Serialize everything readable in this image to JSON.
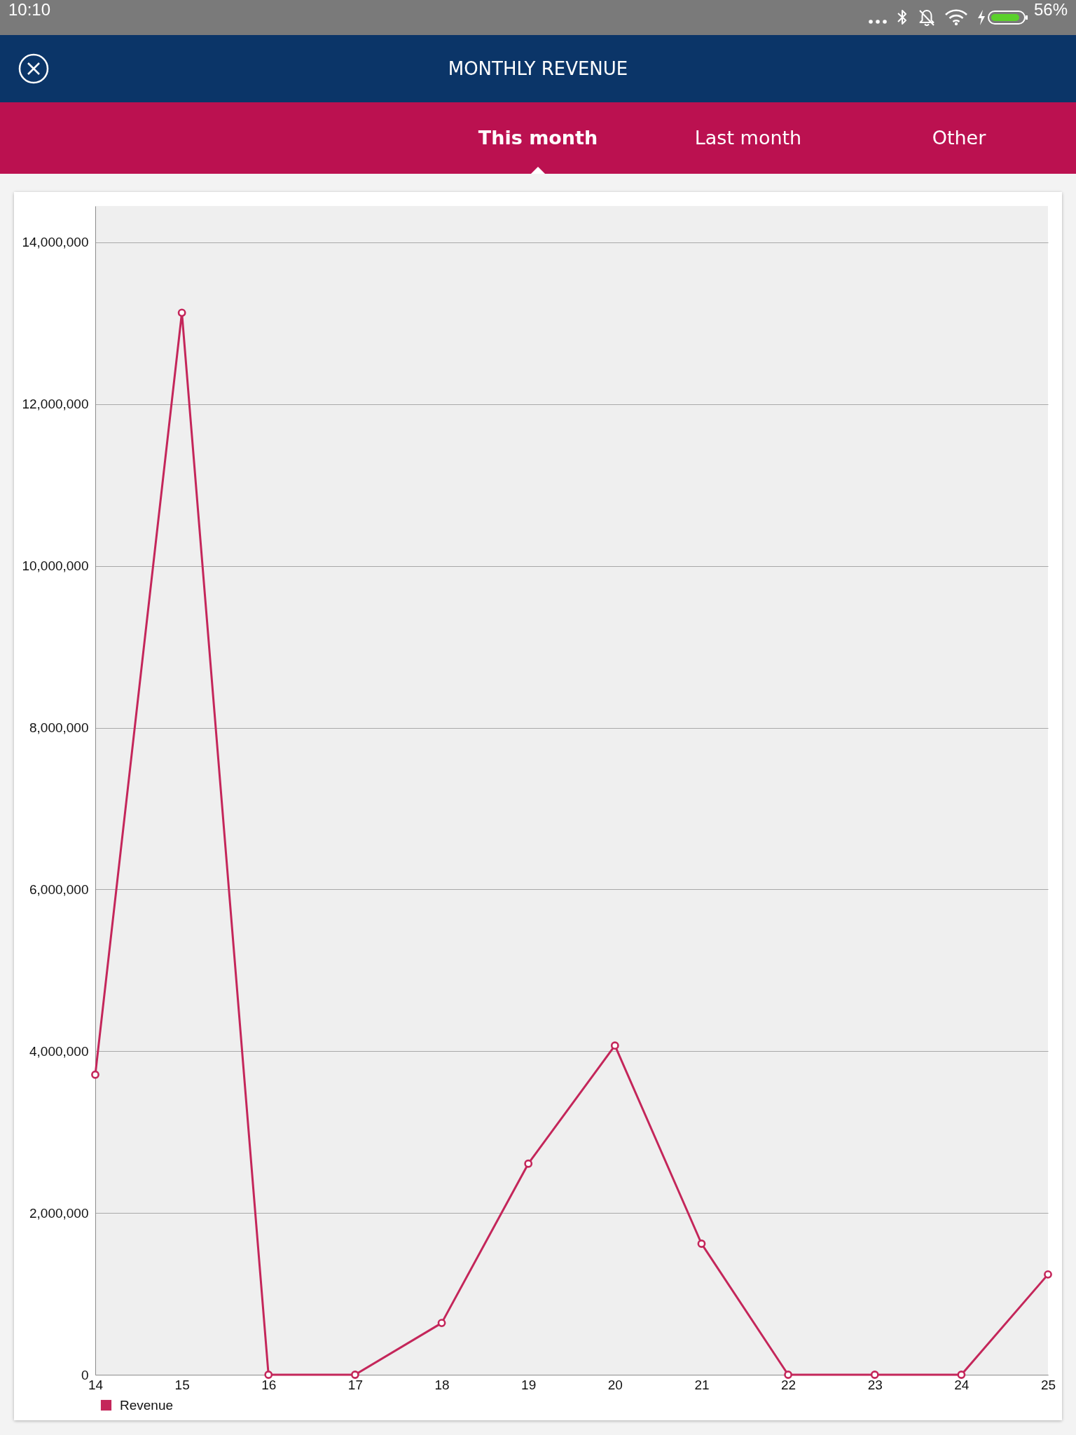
{
  "chart_data": {
    "type": "line",
    "title": "MONTHLY REVENUE",
    "annotations": [
      "This month",
      "Last month",
      "Other",
      "10:10",
      "56%"
    ],
    "x": [
      14,
      15,
      16,
      17,
      18,
      19,
      20,
      21,
      22,
      23,
      24,
      25
    ],
    "xlim": [
      14,
      25
    ],
    "xticks": [
      14,
      15,
      16,
      17,
      18,
      19,
      20,
      21,
      22,
      23,
      24,
      25
    ],
    "ylim": [
      0,
      14450000
    ],
    "yticks": [
      0,
      {
        "value": 2000000,
        "label": "2,000,000"
      },
      {
        "value": 4000000,
        "label": "4,000,000"
      },
      {
        "value": 6000000,
        "label": "6,000,000"
      },
      {
        "value": 8000000,
        "label": "8,000,000"
      },
      {
        "value": 10000000,
        "label": "10,000,000"
      },
      {
        "value": 12000000,
        "label": "12,000,000"
      },
      {
        "value": 14000000,
        "label": "14,000,000"
      }
    ],
    "series": [
      {
        "name": "Revenue",
        "color": "#c4265a",
        "values": [
          3710000,
          13130000,
          0,
          0,
          640000,
          2610000,
          4070000,
          1620000,
          0,
          0,
          0,
          1240000
        ]
      }
    ],
    "grid": "y",
    "legend": "bottom left",
    "marker": "circle",
    "line_style": "solid"
  }
}
